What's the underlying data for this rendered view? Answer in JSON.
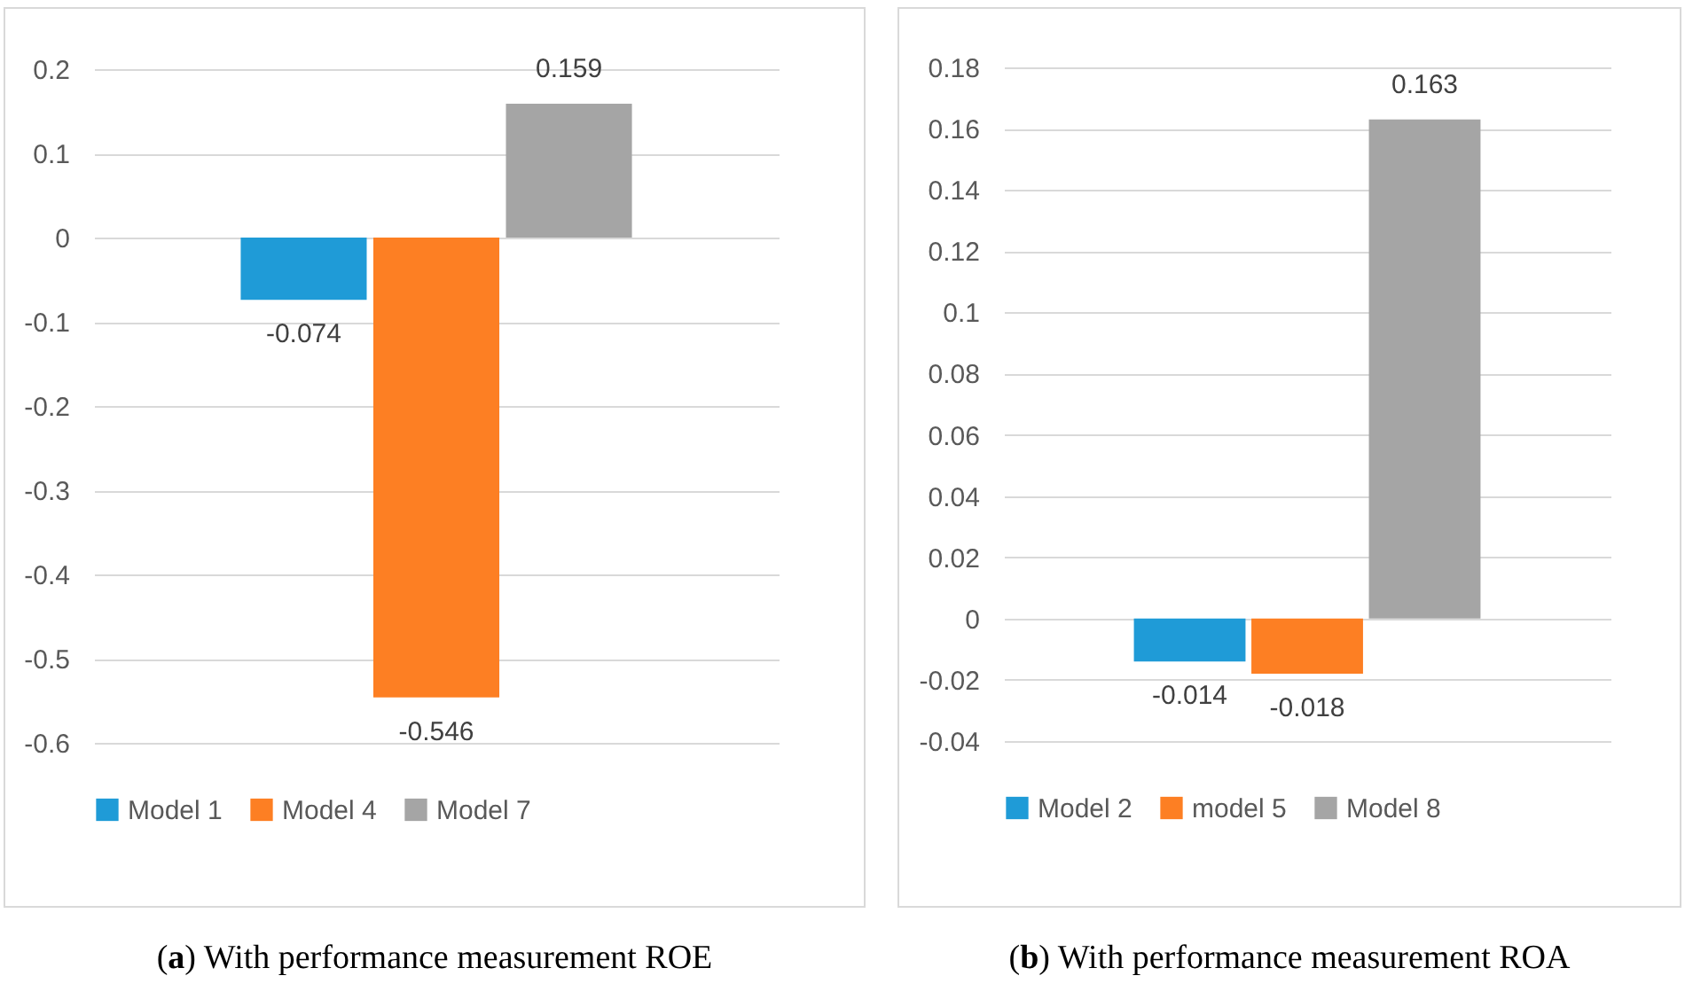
{
  "chart_data": [
    {
      "type": "bar",
      "categories": [
        null
      ],
      "series": [
        {
          "name": "Model 1",
          "color": "#1f9bd7",
          "values": [
            -0.074
          ]
        },
        {
          "name": "Model 4",
          "color": "#fd7f23",
          "values": [
            -0.546
          ]
        },
        {
          "name": "Model 7",
          "color": "#a5a5a5",
          "values": [
            0.159
          ]
        }
      ],
      "ylim": [
        -0.6,
        0.2
      ],
      "yticks": [
        -0.6,
        -0.5,
        -0.4,
        -0.3,
        -0.2,
        -0.1,
        0,
        0.1,
        0.2
      ],
      "grid": "y",
      "legend": "bottom",
      "data_labels": true,
      "tick_labels": "y",
      "annotations": [
        "(a) With performance measurement ROE"
      ]
    },
    {
      "type": "bar",
      "categories": [
        null
      ],
      "series": [
        {
          "name": "Model 2",
          "color": "#1f9bd7",
          "values": [
            -0.014
          ]
        },
        {
          "name": "model 5",
          "color": "#fd7f23",
          "values": [
            -0.018
          ]
        },
        {
          "name": "Model 8",
          "color": "#a5a5a5",
          "values": [
            0.163
          ]
        }
      ],
      "ylim": [
        -0.04,
        0.18
      ],
      "yticks": [
        -0.04,
        -0.02,
        0,
        0.02,
        0.04,
        0.06,
        0.08,
        0.1,
        0.12,
        0.14,
        0.16,
        0.18
      ],
      "grid": "y",
      "legend": "bottom",
      "data_labels": true,
      "tick_labels": "y",
      "annotations": [
        "(b) With performance measurement ROA"
      ]
    }
  ]
}
